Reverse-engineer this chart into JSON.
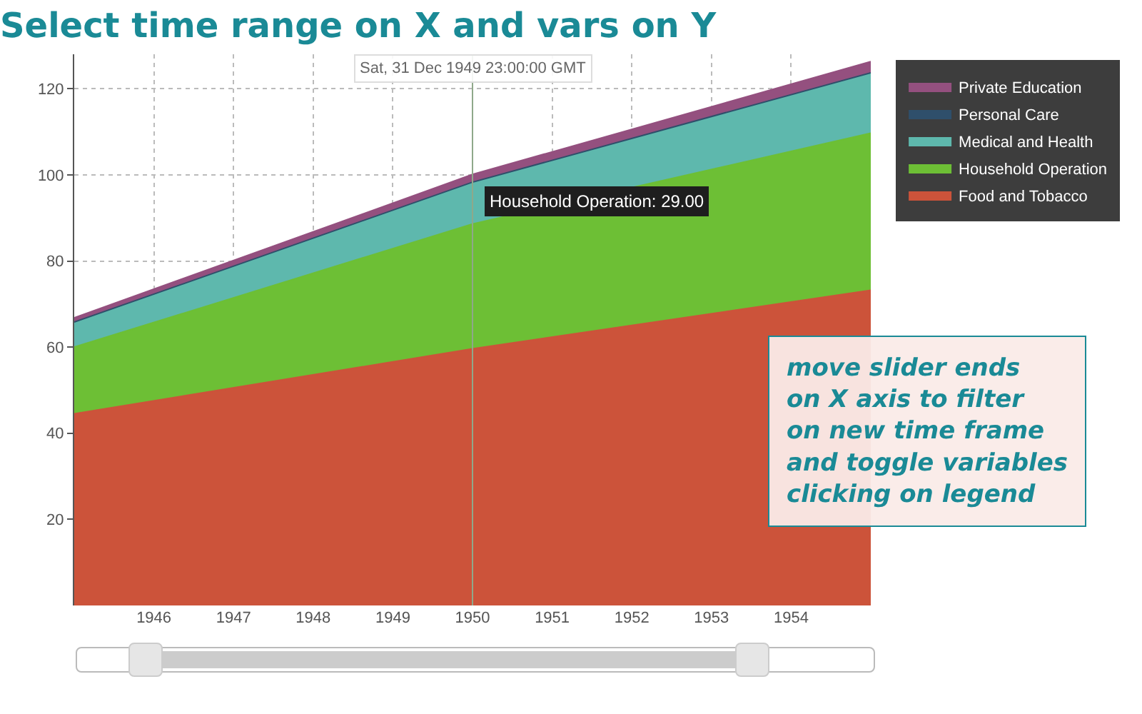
{
  "chart_data": {
    "type": "area",
    "stacked": true,
    "title": "Select time range on X and vars on Y",
    "x": [
      1945,
      1950,
      1955
    ],
    "series": [
      {
        "name": "Food and Tobacco",
        "color": "#cc533a",
        "values": [
          44.5,
          59.6,
          73.2
        ]
      },
      {
        "name": "Household Operation",
        "color": "#6dbf35",
        "values": [
          15.5,
          29.0,
          36.5
        ]
      },
      {
        "name": "Medical and Health",
        "color": "#5eb8ad",
        "values": [
          5.8,
          9.7,
          14.0
        ]
      },
      {
        "name": "Personal Care",
        "color": "#2f4f6b",
        "values": [
          null,
          null,
          null
        ]
      },
      {
        "name": "Private Education",
        "color": "#94507f",
        "values": [
          1.0,
          1.8,
          2.6
        ]
      }
    ],
    "xlim": [
      1945,
      1955
    ],
    "xticks": [
      1946,
      1947,
      1948,
      1949,
      1950,
      1951,
      1952,
      1953,
      1954
    ],
    "ylim": [
      0,
      128
    ],
    "yticks": [
      20,
      40,
      60,
      80,
      100,
      120
    ],
    "grid": true,
    "legend": "top right",
    "ref_lines": [
      {
        "axis": "x",
        "value": 1950,
        "color": "#8fa88a"
      }
    ],
    "annotations": [
      {
        "text": "Household Operation: 29.00",
        "x": 1950,
        "y": 89.1
      },
      "Sat, 31 Dec 1949 23:00:00 GMT",
      "move slider ends\non X axis to filter\non new time frame\nand toggle variables\nclicking on legend"
    ]
  }
}
